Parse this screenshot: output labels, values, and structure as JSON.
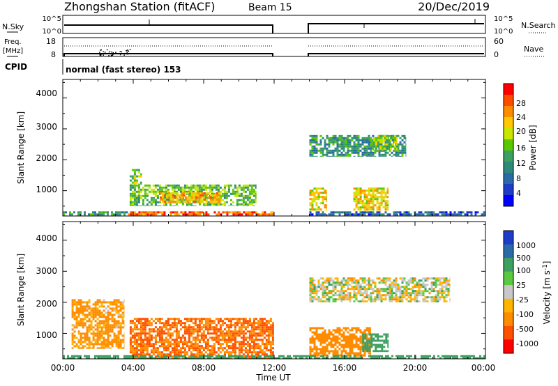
{
  "header": {
    "station": "Zhongshan Station (fitACF)",
    "beam": "Beam 15",
    "date": "20/Dec/2019"
  },
  "panels": {
    "nsky_label": "N.Sky",
    "nsky_ticks": [
      "10^5",
      "10^0"
    ],
    "nsearch_label": "N.Search",
    "nsearch_ticks": [
      "10^5",
      "10^0"
    ],
    "freq_label": "Freq.",
    "freq_unit": "[MHz]",
    "freq_ticks": [
      "18",
      "8"
    ],
    "nave_label": "Nave",
    "nave_ticks": [
      "60",
      "0"
    ],
    "cpid_label": "CPID",
    "cpid_text": "normal (fast stereo) 153"
  },
  "range_axis": {
    "label": "Slant Range [km]",
    "ticks": [
      "4000",
      "3000",
      "2000",
      "1000"
    ]
  },
  "time_axis": {
    "label": "Time UT",
    "ticks": [
      "00:00",
      "04:00",
      "08:00",
      "12:00",
      "16:00",
      "20:00",
      "00:00"
    ]
  },
  "power_scale": {
    "label": "Power [dB]",
    "ticks": [
      "28",
      "24",
      "20",
      "16",
      "12",
      "8",
      "4"
    ],
    "colors": [
      "#ff0000",
      "#ff4b00",
      "#ff8c00",
      "#ffc800",
      "#c8e600",
      "#5ac800",
      "#3ca060",
      "#2e8a78",
      "#2a6aa8",
      "#1e3cc8",
      "#0000ff"
    ]
  },
  "velocity_scale": {
    "label": "Velocity [m s",
    "label_sup": "-1",
    "label_end": "]",
    "ticks": [
      "1000",
      "500",
      "100",
      "25",
      "-25",
      "-100",
      "-500",
      "-1000"
    ],
    "colors": [
      "#1e3cc8",
      "#2a6aa8",
      "#3ca060",
      "#5ac840",
      "#c8c8c8",
      "#ffb400",
      "#ff8c00",
      "#ff5000",
      "#ff0000"
    ]
  },
  "chart_data": {
    "type": "heatmap",
    "x_range_hours": [
      0,
      24
    ],
    "y_range_km": [
      180,
      4600
    ],
    "data_gap_hours": [
      12.0,
      14.0
    ],
    "power_regions": [
      {
        "t0": 3.7,
        "t1": 12.0,
        "r0": 180,
        "r1": 330,
        "value": 26
      },
      {
        "t0": 0.0,
        "t1": 3.7,
        "r0": 180,
        "r1": 330,
        "value": 10
      },
      {
        "t0": 3.8,
        "t1": 11.0,
        "r0": 500,
        "r1": 1200,
        "value": 14
      },
      {
        "t0": 5.5,
        "t1": 9.0,
        "r0": 600,
        "r1": 950,
        "value": 22
      },
      {
        "t0": 3.8,
        "t1": 4.5,
        "r0": 1200,
        "r1": 1700,
        "value": 16
      },
      {
        "t0": 14.0,
        "t1": 19.5,
        "r0": 2100,
        "r1": 2800,
        "value": 10
      },
      {
        "t0": 17.5,
        "t1": 19.0,
        "r0": 2300,
        "r1": 2800,
        "value": 16
      },
      {
        "t0": 14.0,
        "t1": 15.0,
        "r0": 350,
        "r1": 1100,
        "value": 20
      },
      {
        "t0": 16.5,
        "t1": 18.5,
        "r0": 350,
        "r1": 1100,
        "value": 20
      },
      {
        "t0": 14.0,
        "t1": 24.0,
        "r0": 180,
        "r1": 330,
        "value": 6
      }
    ],
    "velocity_regions": [
      {
        "t0": 3.8,
        "t1": 12.0,
        "r0": 180,
        "r1": 1500,
        "value": -300
      },
      {
        "t0": 0.5,
        "t1": 3.5,
        "r0": 500,
        "r1": 2100,
        "value": -100
      },
      {
        "t0": 14.0,
        "t1": 22.0,
        "r0": 2000,
        "r1": 2800,
        "value": 0
      },
      {
        "t0": 14.0,
        "t1": 17.5,
        "r0": 250,
        "r1": 1200,
        "value": -200
      },
      {
        "t0": 17.0,
        "t1": 18.5,
        "r0": 400,
        "r1": 1000,
        "value": 150
      },
      {
        "t0": 0.0,
        "t1": 24.0,
        "r0": 180,
        "r1": 300,
        "value": 150
      }
    ]
  }
}
